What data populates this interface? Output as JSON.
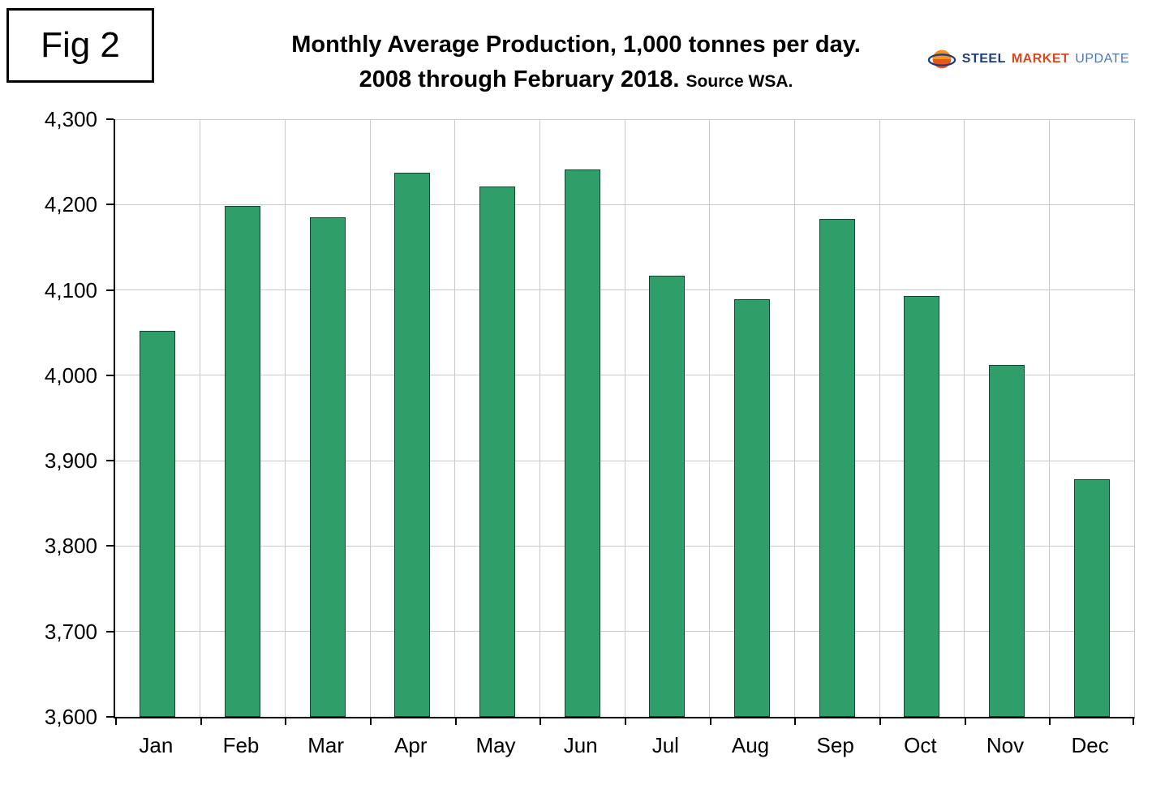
{
  "figure_label": "Fig 2",
  "title_line1": "Monthly Average Production, 1,000 tonnes per day.",
  "title_line2": "2008 through February 2018.",
  "title_source": "Source WSA.",
  "logo": {
    "steel": "STEEL",
    "market": "MARKET",
    "update": "UPDATE"
  },
  "colors": {
    "bar_fill": "#2f9e68",
    "bar_border": "#0f4630",
    "gridline": "#c9c9c9",
    "axis": "#000000",
    "logo_blue": "#1d3d7c",
    "logo_red": "#d9481f",
    "logo_light_blue": "#4a76b8"
  },
  "chart_data": {
    "type": "bar",
    "title": "Monthly Average Production, 1,000 tonnes per day. 2008 through February 2018. Source WSA.",
    "categories": [
      "Jan",
      "Feb",
      "Mar",
      "Apr",
      "May",
      "Jun",
      "Jul",
      "Aug",
      "Sep",
      "Oct",
      "Nov",
      "Dec"
    ],
    "values": [
      4052,
      4198,
      4185,
      4237,
      4221,
      4241,
      4117,
      4089,
      4183,
      4093,
      4012,
      3878
    ],
    "xlabel": "",
    "ylabel": "",
    "ylim": [
      3600,
      4300
    ],
    "ytick_step": 100,
    "ytick_labels": [
      "3,600",
      "3,700",
      "3,800",
      "3,900",
      "4,000",
      "4,100",
      "4,200",
      "4,300"
    ],
    "grid": true,
    "legend": false,
    "bar_color": "#2f9e68"
  }
}
